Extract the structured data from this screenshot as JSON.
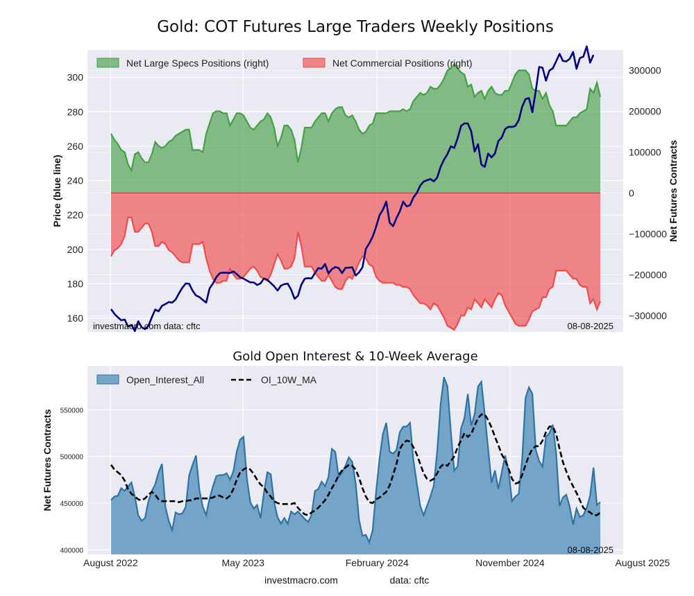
{
  "title": "Gold: COT Futures Large Traders Weekly Positions",
  "footer": {
    "site": "investmacro.com",
    "data": "data: cftc"
  },
  "chart_data": [
    {
      "type": "area",
      "title": "Gold: COT Futures Large Traders Weekly Positions",
      "ylabel_left": "Price (blue line)",
      "ylabel_right": "Net Futures Contracts",
      "left_ticks": [
        "160",
        "180",
        "200",
        "220",
        "240",
        "260",
        "280",
        "300"
      ],
      "right_ticks": [
        "−300000",
        "−200000",
        "−100000",
        "0",
        "100000",
        "200000",
        "300000"
      ],
      "ylim_left": [
        152,
        316
      ],
      "ylim_right": [
        -340000,
        350000
      ],
      "legend": [
        "Net Large Specs Positions (right)",
        "Net Commercial Positions (right)"
      ],
      "legend_position": "top-left",
      "note_left": "investmacro.com   data: cftc",
      "note_right": "08-08-2025",
      "grid": true,
      "x_start": "2022-08-02",
      "x_step_days": 7,
      "x_ticks": [
        "2022-08-01",
        "2023-05-01",
        "2024-02-01",
        "2024-11-01",
        "2025-08-01"
      ],
      "colors": {
        "specs": "#3a9a3a",
        "commercial": "#f04040",
        "price": "#00007f"
      },
      "series": [
        {
          "name": "Net Large Specs Positions (right)",
          "values": [
            145000,
            130000,
            120000,
            105000,
            100000,
            70000,
            55000,
            95000,
            100000,
            85000,
            75000,
            75000,
            95000,
            125000,
            115000,
            110000,
            115000,
            125000,
            130000,
            140000,
            145000,
            150000,
            155000,
            155000,
            105000,
            105000,
            105000,
            100000,
            145000,
            170000,
            195000,
            200000,
            200000,
            195000,
            195000,
            165000,
            180000,
            195000,
            195000,
            190000,
            175000,
            160000,
            155000,
            165000,
            175000,
            180000,
            195000,
            185000,
            160000,
            115000,
            135000,
            165000,
            165000,
            155000,
            130000,
            75000,
            110000,
            160000,
            160000,
            160000,
            175000,
            185000,
            195000,
            195000,
            175000,
            195000,
            205000,
            210000,
            210000,
            190000,
            185000,
            190000,
            175000,
            155000,
            145000,
            150000,
            165000,
            170000,
            195000,
            195000,
            195000,
            195000,
            200000,
            200000,
            200000,
            200000,
            205000,
            200000,
            205000,
            225000,
            235000,
            245000,
            240000,
            245000,
            260000,
            255000,
            255000,
            265000,
            280000,
            300000,
            305000,
            315000,
            305000,
            295000,
            290000,
            260000,
            265000,
            235000,
            245000,
            250000,
            230000,
            250000,
            260000,
            245000,
            240000,
            240000,
            250000,
            250000,
            270000,
            290000,
            300000,
            300000,
            300000,
            290000,
            255000,
            250000,
            250000,
            230000,
            245000,
            215000,
            200000,
            165000,
            165000,
            165000,
            165000,
            175000,
            185000,
            185000,
            195000,
            200000,
            205000,
            255000,
            245000,
            270000,
            235000
          ]
        },
        {
          "name": "Net Commercial Positions (right)",
          "values": [
            -155000,
            -140000,
            -135000,
            -125000,
            -105000,
            -60000,
            -60000,
            -95000,
            -95000,
            -85000,
            -75000,
            -75000,
            -95000,
            -130000,
            -130000,
            -120000,
            -125000,
            -140000,
            -145000,
            -155000,
            -165000,
            -170000,
            -170000,
            -170000,
            -125000,
            -125000,
            -125000,
            -120000,
            -160000,
            -190000,
            -210000,
            -220000,
            -220000,
            -215000,
            -215000,
            -185000,
            -200000,
            -210000,
            -210000,
            -205000,
            -195000,
            -185000,
            -180000,
            -190000,
            -205000,
            -210000,
            -215000,
            -200000,
            -175000,
            -150000,
            -165000,
            -185000,
            -185000,
            -180000,
            -160000,
            -95000,
            -130000,
            -180000,
            -180000,
            -180000,
            -195000,
            -205000,
            -215000,
            -215000,
            -200000,
            -215000,
            -230000,
            -235000,
            -235000,
            -215000,
            -205000,
            -210000,
            -190000,
            -170000,
            -155000,
            -160000,
            -175000,
            -180000,
            -205000,
            -215000,
            -220000,
            -220000,
            -220000,
            -220000,
            -225000,
            -225000,
            -230000,
            -230000,
            -235000,
            -250000,
            -260000,
            -270000,
            -270000,
            -275000,
            -285000,
            -270000,
            -275000,
            -290000,
            -305000,
            -325000,
            -330000,
            -335000,
            -320000,
            -300000,
            -300000,
            -280000,
            -285000,
            -260000,
            -270000,
            -280000,
            -260000,
            -270000,
            -280000,
            -260000,
            -245000,
            -250000,
            -275000,
            -290000,
            -305000,
            -320000,
            -325000,
            -325000,
            -325000,
            -310000,
            -290000,
            -285000,
            -280000,
            -255000,
            -255000,
            -235000,
            -230000,
            -190000,
            -190000,
            -190000,
            -190000,
            -200000,
            -210000,
            -210000,
            -225000,
            -230000,
            -230000,
            -270000,
            -260000,
            -285000,
            -265000
          ]
        },
        {
          "name": "Price",
          "values": [
            165.3,
            162.5,
            160.5,
            158.8,
            159.2,
            155.2,
            156.1,
            152.5,
            158.2,
            154.8,
            153.6,
            155.6,
            160.5,
            165.0,
            164.0,
            167.2,
            168.2,
            169.4,
            169.1,
            170.8,
            174.5,
            177.7,
            180.2,
            180.0,
            176.0,
            173.2,
            172.3,
            170.6,
            169.1,
            177.3,
            180.2,
            183.9,
            186.2,
            186.5,
            186.4,
            186.3,
            187.2,
            185.7,
            183.8,
            183.0,
            181.9,
            180.8,
            180.8,
            179.3,
            180.2,
            183.1,
            182.3,
            180.5,
            178.6,
            176.1,
            178.9,
            179.8,
            180.1,
            176.6,
            171.3,
            173.0,
            179.5,
            183.0,
            183.3,
            183.1,
            186.2,
            189.1,
            188.8,
            191.5,
            186.1,
            188.5,
            189.7,
            189.2,
            186.2,
            189.3,
            189.4,
            189.6,
            184.8,
            186.7,
            189.6,
            200.4,
            203.5,
            207.4,
            213.1,
            219.8,
            223.0,
            227.8,
            215.5,
            213.5,
            218.2,
            222.2,
            227.8,
            225.0,
            225.7,
            230.2,
            232.8,
            237.1,
            239.5,
            240.2,
            240.9,
            239.6,
            241.8,
            248.0,
            252.2,
            255.4,
            259.9,
            259.0,
            264.6,
            271.7,
            273.3,
            273.2,
            268.6,
            256.9,
            261.2,
            249.4,
            248.0,
            255.7,
            253.5,
            255.8,
            263.0,
            265.1,
            270.0,
            271.3,
            271.2,
            271.8,
            275.2,
            283.0,
            287.4,
            288.0,
            279.8,
            292.2,
            306.1,
            305.6,
            298.1,
            304.0,
            305.3,
            309.4,
            313.7,
            309.6,
            309.3,
            310.8,
            314.8,
            305.0,
            311.3,
            312.0,
            318.0,
            308.6,
            313.1
          ]
        }
      ]
    },
    {
      "type": "area",
      "title": "Gold Open Interest & 10-Week Average",
      "ylabel": "Net Futures Contracts",
      "y_ticks": [
        "400000",
        "450000",
        "500000",
        "550000"
      ],
      "ylim": [
        395000,
        597000
      ],
      "legend": [
        "Open_Interest_All",
        "OI_10W_MA"
      ],
      "legend_position": "top-left",
      "note_right": "08-08-2025",
      "x_tick_labels": [
        "August 2022",
        "May 2023",
        "February 2024",
        "November 2024",
        "August 2025"
      ],
      "grid": true,
      "colors": {
        "oi_fill": "#5f98c0",
        "oi_line": "#2f73a3",
        "ma": "#000000"
      },
      "series": [
        {
          "name": "Open_Interest_All",
          "values": [
            453000,
            457000,
            458000,
            466000,
            463000,
            468000,
            472000,
            457000,
            437000,
            431000,
            434000,
            452000,
            463000,
            470000,
            483000,
            492000,
            446000,
            431000,
            421000,
            440000,
            438000,
            439000,
            446000,
            480000,
            491000,
            501000,
            464000,
            446000,
            437000,
            455000,
            468000,
            479000,
            480000,
            480000,
            482000,
            475000,
            484000,
            505000,
            518000,
            521000,
            476000,
            451000,
            444000,
            448000,
            434000,
            461000,
            483000,
            481000,
            451000,
            435000,
            428000,
            434000,
            428000,
            441000,
            438000,
            441000,
            437000,
            433000,
            430000,
            437000,
            463000,
            465000,
            473000,
            468000,
            478000,
            508000,
            505000,
            478000,
            483000,
            490000,
            499000,
            494000,
            471000,
            432000,
            415000,
            416000,
            408000,
            421000,
            462000,
            497000,
            524000,
            536000,
            505000,
            503000,
            507000,
            526000,
            532000,
            532000,
            536000,
            496000,
            471000,
            447000,
            437000,
            447000,
            457000,
            469000,
            506000,
            556000,
            585000,
            575000,
            527000,
            485000,
            489000,
            530000,
            541000,
            567000,
            533000,
            545000,
            575000,
            580000,
            545000,
            508000,
            472000,
            485000,
            465000,
            483000,
            501000,
            485000,
            452000,
            457000,
            460000,
            497000,
            563000,
            574000,
            567000,
            507000,
            495000,
            489000,
            521000,
            525000,
            534000,
            503000,
            447000,
            456000,
            459000,
            446000,
            427000,
            444000,
            435000,
            437000,
            445000,
            458000,
            488000,
            448000,
            451000
          ]
        },
        {
          "name": "OI_10W_MA",
          "values": [
            491000,
            486000,
            483000,
            480000,
            474000,
            465000,
            460000,
            457000,
            454000,
            453000,
            455000,
            459000,
            462000,
            459000,
            454000,
            452000,
            452000,
            452000,
            452000,
            452000,
            451000,
            452000,
            452000,
            453000,
            453000,
            455000,
            455000,
            455000,
            455000,
            455000,
            456000,
            458000,
            458000,
            456000,
            455000,
            458000,
            465000,
            475000,
            483000,
            486000,
            488000,
            486000,
            481000,
            475000,
            470000,
            467000,
            461000,
            457000,
            452000,
            450000,
            449000,
            449000,
            449000,
            449000,
            450000,
            445000,
            441000,
            438000,
            437000,
            440000,
            442000,
            445000,
            449000,
            453000,
            459000,
            466000,
            472000,
            480000,
            485000,
            488000,
            491000,
            490000,
            486000,
            477000,
            466000,
            457000,
            451000,
            450000,
            454000,
            456000,
            459000,
            462000,
            469000,
            480000,
            492000,
            508000,
            514000,
            517000,
            516000,
            510000,
            502000,
            492000,
            482000,
            476000,
            474000,
            476000,
            482000,
            489000,
            492000,
            490000,
            495000,
            500000,
            510000,
            517000,
            525000,
            521000,
            524000,
            533000,
            541000,
            545000,
            545000,
            539000,
            531000,
            521000,
            512000,
            502000,
            496000,
            487000,
            476000,
            471000,
            472000,
            480000,
            491000,
            501000,
            508000,
            511000,
            511000,
            517000,
            526000,
            532000,
            532000,
            524000,
            508000,
            494000,
            484000,
            475000,
            468000,
            461000,
            453000,
            445000,
            442000,
            440000,
            437000,
            437000,
            440000
          ]
        }
      ]
    }
  ]
}
